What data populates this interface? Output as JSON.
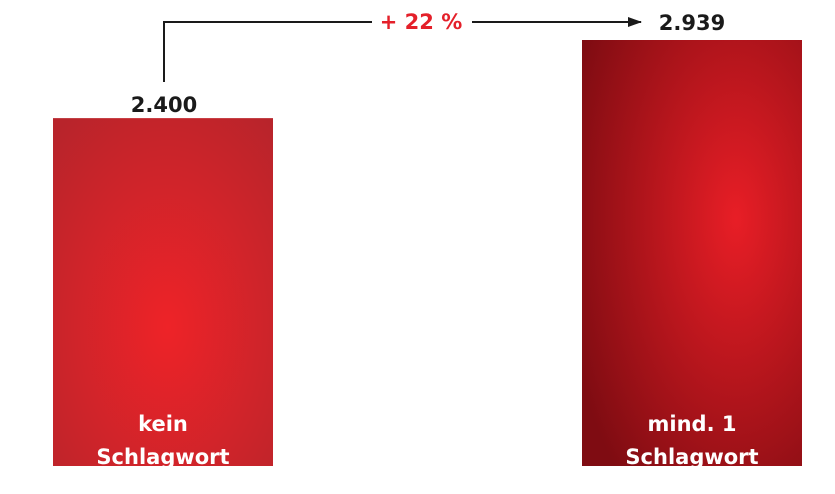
{
  "chart_data": {
    "type": "bar",
    "categories": [
      [
        "kein",
        "Schlagwort"
      ],
      [
        "mind. 1",
        "Schlagwort"
      ]
    ],
    "values": [
      2400,
      2939
    ],
    "value_labels": [
      "2.400",
      "2.939"
    ],
    "annotation": {
      "text": "+ 22 %",
      "from_index": 0,
      "to_index": 1
    },
    "ylim": [
      0,
      2939
    ],
    "grid": false,
    "legend": "none"
  },
  "colors": {
    "bar_light_center": "#ee2328",
    "bar_light_edge": "#b8242b",
    "bar_dark_center": "#e81e26",
    "bar_dark_edge": "#7f0c12",
    "annotation_text": "#e4202a",
    "label_text": "#1a1a1a",
    "bar_label_text": "#ffffff",
    "line": "#1a1a1a"
  }
}
